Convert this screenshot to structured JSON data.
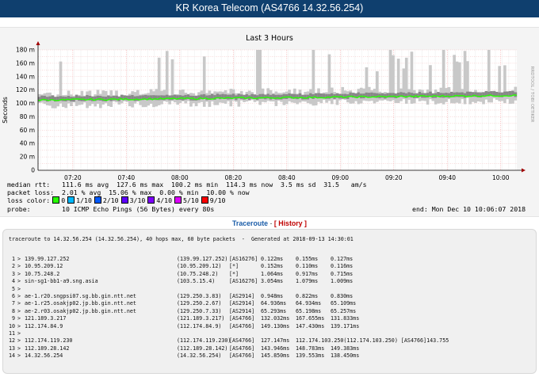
{
  "header": {
    "title": "KR Korea Telecom (AS4766 14.32.56.254)"
  },
  "chart_data": {
    "type": "area",
    "title": "Last 3 Hours",
    "ylabel": "Seconds",
    "side_label": "RRDTOOL / TOBI OETIKER",
    "y_ticks": [
      {
        "v": 0,
        "label": "0"
      },
      {
        "v": 20,
        "label": "20 m"
      },
      {
        "v": 40,
        "label": "40 m"
      },
      {
        "v": 60,
        "label": "60 m"
      },
      {
        "v": 80,
        "label": "80 m"
      },
      {
        "v": 100,
        "label": "100 m"
      },
      {
        "v": 120,
        "label": "120 m"
      },
      {
        "v": 140,
        "label": "140 m"
      },
      {
        "v": 160,
        "label": "160 m"
      },
      {
        "v": 180,
        "label": "180 m"
      }
    ],
    "ylim": [
      0,
      180
    ],
    "x_ticks": [
      {
        "m": 20,
        "label": "07:20"
      },
      {
        "m": 40,
        "label": "07:40"
      },
      {
        "m": 60,
        "label": "08:00"
      },
      {
        "m": 80,
        "label": "08:20"
      },
      {
        "m": 100,
        "label": "08:40"
      },
      {
        "m": 120,
        "label": "09:00"
      },
      {
        "m": 140,
        "label": "09:20"
      },
      {
        "m": 160,
        "label": "09:40"
      },
      {
        "m": 180,
        "label": "10:00"
      }
    ],
    "xlim_minutes": [
      7,
      186
    ],
    "median_line": {
      "start": 105,
      "end": 112
    },
    "grid": true
  },
  "stats": {
    "median_rtt": "median rtt:   111.6 ms avg  127.6 ms max  100.2 ms min  114.3 ms now  3.5 ms sd  31.5   am/s",
    "packet_loss": "packet loss:  2.01 % avg  15.06 % max  0.00 % min  10.00 % now",
    "loss_color_label": "loss color:",
    "loss_legend": [
      {
        "label": "0",
        "color": "#26ff00"
      },
      {
        "label": "1/10",
        "color": "#00b8ff"
      },
      {
        "label": "2/10",
        "color": "#0059ff"
      },
      {
        "label": "3/10",
        "color": "#5e00ff"
      },
      {
        "label": "4/10",
        "color": "#7e00ff"
      },
      {
        "label": "5/10",
        "color": "#dd00ff"
      },
      {
        "label": "9/10",
        "color": "#ff0000"
      }
    ],
    "probe": "probe:        10 ICMP Echo Pings (56 Bytes) every 80s",
    "end_time": "end: Mon Dec 10 10:06:07 2018"
  },
  "links": {
    "traceroute": "Traceroute",
    "separator": "-",
    "history": "[ History ]"
  },
  "traceroute": {
    "header": "traceroute to 14.32.56.254 (14.32.56.254), 40 hops max, 60 byte packets  -  Generated at 2018-09-13 14:30:01",
    "hops": [
      {
        "num": " 1",
        "host": "139.99.127.252",
        "ip": "(139.99.127.252)",
        "as": "[AS16276]",
        "t1": "0.122ms",
        "t2": "0.155ms",
        "t3": "0.127ms"
      },
      {
        "num": " 2",
        "host": "10.95.209.12",
        "ip": "(10.95.209.12)",
        "as": "[*]",
        "t1": "0.152ms",
        "t2": "0.110ms",
        "t3": "0.116ms"
      },
      {
        "num": " 3",
        "host": "10.75.248.2",
        "ip": "(10.75.248.2)",
        "as": "[*]",
        "t1": "1.064ms",
        "t2": "0.917ms",
        "t3": "0.715ms"
      },
      {
        "num": " 4",
        "host": "sin-sg1-bb1-a9.sng.asia",
        "ip": "(103.5.15.4)",
        "as": "[AS16276]",
        "t1": "3.054ms",
        "t2": "1.079ms",
        "t3": "1.009ms"
      },
      {
        "num": " 5",
        "host": "",
        "ip": "",
        "as": "",
        "t1": "",
        "t2": "",
        "t3": ""
      },
      {
        "num": " 6",
        "host": "ae-1.r20.sngpsi07.sg.bb.gin.ntt.net",
        "ip": "(129.250.3.83)",
        "as": "[AS2914]",
        "t1": "0.948ms",
        "t2": "0.822ms",
        "t3": "0.830ms"
      },
      {
        "num": " 7",
        "host": "ae-1.r25.osakjp02.jp.bb.gin.ntt.net",
        "ip": "(129.250.2.67)",
        "as": "[AS2914]",
        "t1": "64.936ms",
        "t2": "64.934ms",
        "t3": "65.109ms"
      },
      {
        "num": " 8",
        "host": "ae-2.r03.osakjp02.jp.bb.gin.ntt.net",
        "ip": "(129.250.7.33)",
        "as": "[AS2914]",
        "t1": "65.293ms",
        "t2": "65.198ms",
        "t3": "65.257ms"
      },
      {
        "num": " 9",
        "host": "121.189.3.217",
        "ip": "(121.189.3.217)",
        "as": "[AS4766]",
        "t1": "132.032ms",
        "t2": "167.655ms",
        "t3": "131.833ms"
      },
      {
        "num": "10",
        "host": "112.174.84.9",
        "ip": "(112.174.84.9)",
        "as": "[AS4766]",
        "t1": "149.130ms",
        "t2": "147.430ms",
        "t3": "139.171ms"
      },
      {
        "num": "11",
        "host": "",
        "ip": "",
        "as": "",
        "t1": "",
        "t2": "",
        "t3": ""
      },
      {
        "num": "12",
        "host": "112.174.119.230",
        "ip": "(112.174.119.230)",
        "as": "[AS4766]",
        "t1": "127.147ms",
        "t2": "112.174.103.250(112.174.103.250) [AS4766]143.755",
        "t3": ""
      },
      {
        "num": "13",
        "host": "112.189.28.142",
        "ip": "(112.189.28.142)",
        "as": "[AS4766]",
        "t1": "143.946ms",
        "t2": "148.783ms",
        "t3": "149.383ms"
      },
      {
        "num": "14",
        "host": "14.32.56.254",
        "ip": "(14.32.56.254)",
        "as": "[AS4766]",
        "t1": "145.850ms",
        "t2": "139.553ms",
        "t3": "138.450ms"
      }
    ]
  }
}
